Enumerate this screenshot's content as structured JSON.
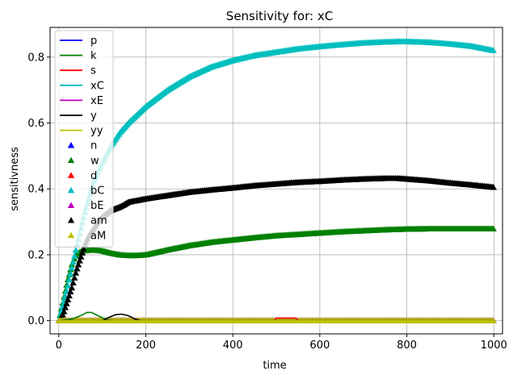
{
  "chart_data": {
    "type": "line",
    "title": "Sensitivity for: xC",
    "xlabel": "time",
    "ylabel": "sensitivness",
    "xlim": [
      -20,
      1020
    ],
    "ylim": [
      -0.04,
      0.89
    ],
    "xticks": [
      0,
      200,
      400,
      600,
      800,
      1000
    ],
    "yticks": [
      0.0,
      0.2,
      0.4,
      0.6,
      0.8
    ],
    "xtick_labels": [
      "0",
      "200",
      "400",
      "600",
      "800",
      "1000"
    ],
    "ytick_labels": [
      "0.0",
      "0.2",
      "0.4",
      "0.6",
      "0.8"
    ],
    "grid": true,
    "legend_position": "upper left",
    "series": [
      {
        "name": "p",
        "style": "line",
        "color": "#0000ff",
        "x": [
          0,
          1000
        ],
        "y": [
          0,
          0
        ]
      },
      {
        "name": "k",
        "style": "line",
        "color": "#008000",
        "x": [
          0,
          30,
          50,
          65,
          75,
          90,
          110,
          130,
          1000
        ],
        "y": [
          0,
          0.005,
          0.015,
          0.025,
          0.025,
          0.015,
          0.003,
          0,
          0
        ]
      },
      {
        "name": "s",
        "style": "line",
        "color": "#ff0000",
        "x": [
          0,
          495,
          500,
          545,
          550,
          1000
        ],
        "y": [
          0,
          0,
          0.008,
          0.008,
          0,
          0
        ]
      },
      {
        "name": "xC",
        "style": "line",
        "color": "#00bfbf",
        "x": [
          0,
          1000
        ],
        "y": [
          0,
          0
        ]
      },
      {
        "name": "xE",
        "style": "line",
        "color": "#bf00bf",
        "x": [
          0,
          1000
        ],
        "y": [
          0,
          0
        ]
      },
      {
        "name": "y",
        "style": "line",
        "color": "#000000",
        "x": [
          0,
          100,
          115,
          130,
          145,
          160,
          175,
          190,
          1000
        ],
        "y": [
          0,
          0,
          0.01,
          0.018,
          0.02,
          0.015,
          0.005,
          0,
          0
        ]
      },
      {
        "name": "yy",
        "style": "line",
        "color": "#bfbf00",
        "x": [
          0,
          1000
        ],
        "y": [
          0,
          0
        ]
      },
      {
        "name": "n",
        "style": "marker",
        "color": "#0000ff",
        "x": [
          0,
          1000
        ],
        "y": [
          0,
          0
        ]
      },
      {
        "name": "w",
        "style": "marker",
        "color": "#008000",
        "x": [
          0,
          10,
          20,
          30,
          40,
          50,
          60,
          80,
          100,
          120,
          140,
          160,
          180,
          200,
          250,
          300,
          350,
          400,
          450,
          500,
          550,
          600,
          650,
          700,
          750,
          800,
          850,
          900,
          950,
          1000
        ],
        "y": [
          0,
          0.06,
          0.12,
          0.17,
          0.2,
          0.21,
          0.213,
          0.215,
          0.212,
          0.205,
          0.2,
          0.198,
          0.198,
          0.2,
          0.215,
          0.228,
          0.238,
          0.245,
          0.252,
          0.258,
          0.262,
          0.266,
          0.27,
          0.273,
          0.276,
          0.278,
          0.279,
          0.279,
          0.279,
          0.279
        ]
      },
      {
        "name": "d",
        "style": "marker",
        "color": "#ff0000",
        "x": [
          0,
          1000
        ],
        "y": [
          0,
          0
        ]
      },
      {
        "name": "bC",
        "style": "marker",
        "color": "#00bfbf",
        "x": [
          0,
          20,
          40,
          60,
          80,
          100,
          120,
          140,
          160,
          180,
          200,
          250,
          300,
          350,
          400,
          450,
          500,
          550,
          600,
          650,
          700,
          750,
          780,
          800,
          850,
          900,
          950,
          1000
        ],
        "y": [
          0,
          0.1,
          0.22,
          0.33,
          0.42,
          0.48,
          0.53,
          0.57,
          0.6,
          0.625,
          0.65,
          0.7,
          0.74,
          0.77,
          0.79,
          0.805,
          0.815,
          0.825,
          0.832,
          0.838,
          0.843,
          0.846,
          0.847,
          0.847,
          0.845,
          0.84,
          0.833,
          0.82
        ]
      },
      {
        "name": "bE",
        "style": "marker",
        "color": "#bf00bf",
        "x": [
          0,
          1000
        ],
        "y": [
          0,
          0
        ]
      },
      {
        "name": "am",
        "style": "marker",
        "color": "#000000",
        "x": [
          0,
          10,
          20,
          30,
          40,
          50,
          60,
          70,
          80,
          90,
          100,
          110,
          120,
          130,
          140,
          150,
          160,
          180,
          200,
          250,
          300,
          350,
          400,
          450,
          500,
          550,
          600,
          650,
          700,
          750,
          780,
          800,
          850,
          900,
          950,
          1000
        ],
        "y": [
          0,
          0.02,
          0.06,
          0.1,
          0.15,
          0.19,
          0.23,
          0.26,
          0.28,
          0.3,
          0.315,
          0.325,
          0.335,
          0.34,
          0.345,
          0.352,
          0.36,
          0.365,
          0.37,
          0.38,
          0.39,
          0.397,
          0.403,
          0.41,
          0.415,
          0.42,
          0.423,
          0.427,
          0.43,
          0.432,
          0.432,
          0.43,
          0.425,
          0.418,
          0.412,
          0.405
        ]
      },
      {
        "name": "aM",
        "style": "marker",
        "color": "#bfbf00",
        "x": [
          0,
          1000
        ],
        "y": [
          0,
          0
        ]
      }
    ]
  }
}
